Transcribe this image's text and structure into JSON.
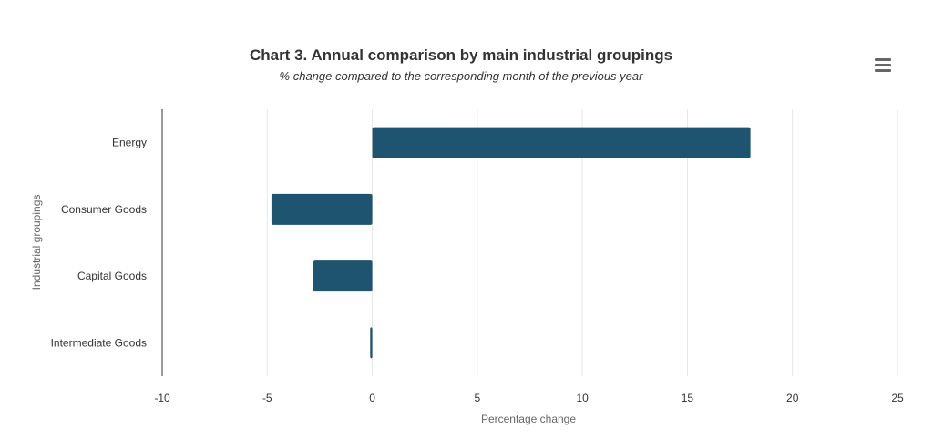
{
  "chart_data": {
    "type": "bar",
    "orientation": "horizontal",
    "title": "Chart 3. Annual comparison by main industrial groupings",
    "subtitle": "% change compared to the corresponding month of the previous year",
    "xlabel": "Percentage change",
    "ylabel": "Industrial groupings",
    "categories": [
      "Energy",
      "Consumer Goods",
      "Capital Goods",
      "Intermediate Goods"
    ],
    "values": [
      18.0,
      -4.8,
      -2.8,
      -0.1
    ],
    "xlim": [
      -10,
      25
    ],
    "xticks": [
      "-10",
      "-5",
      "0",
      "5",
      "10",
      "15",
      "20",
      "25"
    ],
    "grid": true,
    "bar_color": "#1f5470",
    "legend": "none"
  },
  "menu": {
    "icon": "hamburger-menu-icon"
  }
}
